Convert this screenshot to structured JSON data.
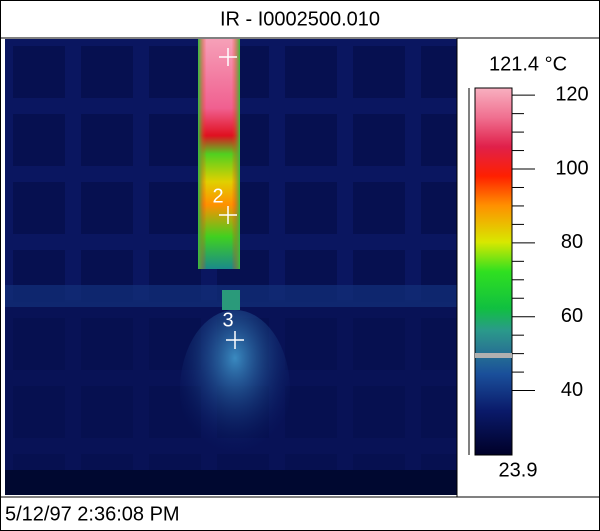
{
  "header": {
    "title": "IR - I0002500.010"
  },
  "image": {
    "markers": [
      {
        "label": "2"
      },
      {
        "label": "3"
      }
    ]
  },
  "scale": {
    "max": {
      "value": 121.4,
      "label": "121.4 °C"
    },
    "min": {
      "value": 23.9,
      "label": "23.9"
    },
    "ticks": [
      120,
      100,
      80,
      60,
      40
    ]
  },
  "footer": {
    "timestamp": "5/12/97 2:36:08 PM"
  }
}
